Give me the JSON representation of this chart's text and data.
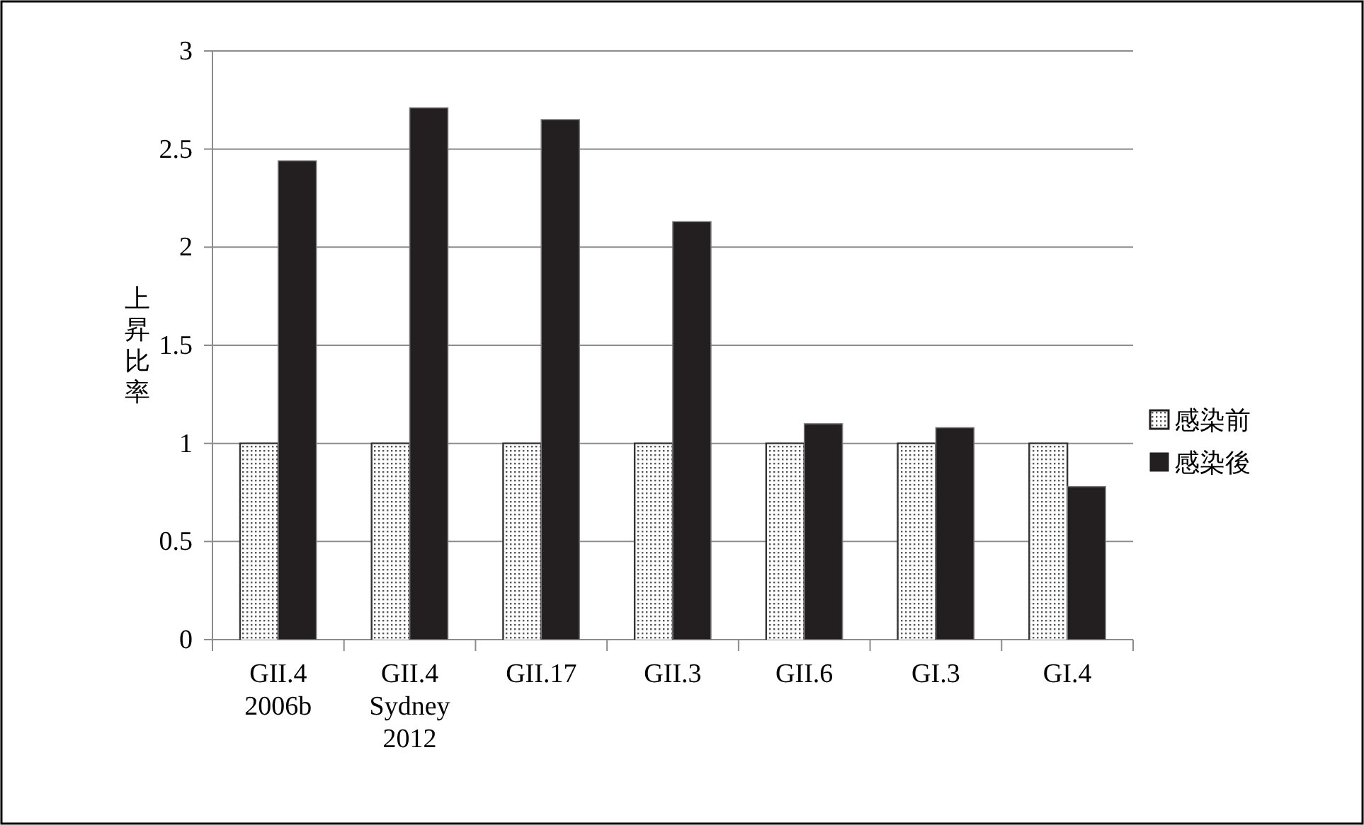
{
  "chart_data": {
    "type": "bar",
    "ylabel": "上昇比率",
    "categories": [
      "GII.4\n2006b",
      "GII.4\nSydney\n2012",
      "GII.17",
      "GII.3",
      "GII.6",
      "GI.3",
      "GI.4"
    ],
    "series": [
      {
        "name": "感染前",
        "color": "#d9d9d9",
        "values": [
          1,
          1,
          1,
          1,
          1,
          1,
          1
        ]
      },
      {
        "name": "感染後",
        "color": "#231f20",
        "values": [
          2.44,
          2.71,
          2.65,
          2.13,
          1.1,
          1.08,
          0.78
        ]
      }
    ],
    "ylim": [
      0,
      3
    ],
    "yticks": [
      0,
      0.5,
      1,
      1.5,
      2,
      2.5,
      3
    ],
    "grid": "y",
    "legend": "right"
  }
}
